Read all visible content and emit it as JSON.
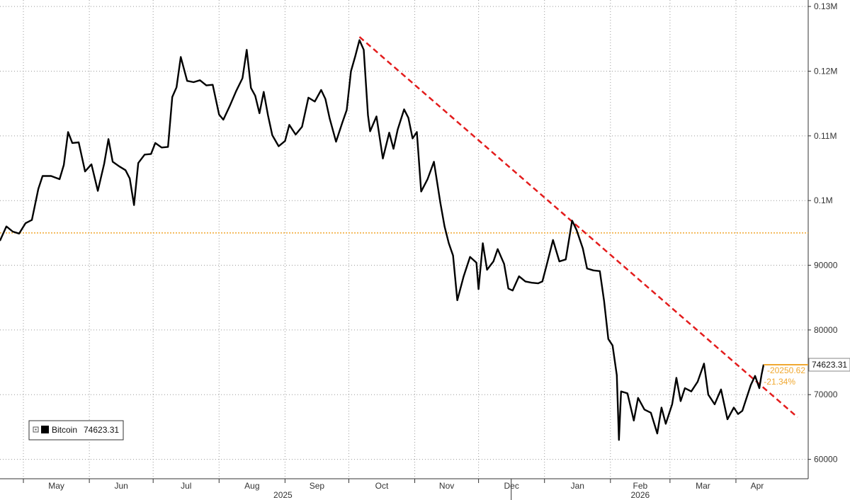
{
  "chart_data": {
    "type": "line",
    "y_unit_note": "axis in USD",
    "ylim": [
      57000,
      131000
    ],
    "y_ticks": [
      {
        "value": 60000,
        "label": "60000"
      },
      {
        "value": 70000,
        "label": "70000"
      },
      {
        "value": 80000,
        "label": "80000"
      },
      {
        "value": 90000,
        "label": "90000"
      },
      {
        "value": 100000,
        "label": "0.1M"
      },
      {
        "value": 110000,
        "label": "0.11M"
      },
      {
        "value": 120000,
        "label": "0.12M"
      },
      {
        "value": 130000,
        "label": "0.13M"
      }
    ],
    "x_range": [
      "2025-04-20",
      "2026-04-15"
    ],
    "x_ticks": [
      {
        "date": "2025-05-01",
        "label": "May"
      },
      {
        "date": "2025-06-01",
        "label": "Jun"
      },
      {
        "date": "2025-07-01",
        "label": "Jul"
      },
      {
        "date": "2025-08-01",
        "label": "Aug"
      },
      {
        "date": "2025-09-01",
        "label": "Sep"
      },
      {
        "date": "2025-10-01",
        "label": "Oct"
      },
      {
        "date": "2025-11-01",
        "label": "Nov"
      },
      {
        "date": "2025-12-01",
        "label": "Dec"
      },
      {
        "date": "2026-01-01",
        "label": "Jan"
      },
      {
        "date": "2026-02-01",
        "label": "Feb"
      },
      {
        "date": "2026-03-01",
        "label": "Mar"
      },
      {
        "date": "2026-04-01",
        "label": "Apr"
      }
    ],
    "year_labels": [
      {
        "date": "2025-08-31",
        "label": "2025"
      },
      {
        "date": "2026-02-15",
        "label": "2026"
      }
    ],
    "grid": true,
    "series": [
      {
        "name": "Bitcoin",
        "color": "#000000",
        "points": [
          [
            "2025-04-20",
            93800
          ],
          [
            "2025-04-23",
            96000
          ],
          [
            "2025-04-26",
            95200
          ],
          [
            "2025-04-29",
            94900
          ],
          [
            "2025-05-02",
            96500
          ],
          [
            "2025-05-05",
            97000
          ],
          [
            "2025-05-08",
            101800
          ],
          [
            "2025-05-10",
            103800
          ],
          [
            "2025-05-14",
            103800
          ],
          [
            "2025-05-18",
            103300
          ],
          [
            "2025-05-20",
            105500
          ],
          [
            "2025-05-22",
            110600
          ],
          [
            "2025-05-24",
            108900
          ],
          [
            "2025-05-27",
            109000
          ],
          [
            "2025-05-30",
            104500
          ],
          [
            "2025-06-02",
            105600
          ],
          [
            "2025-06-05",
            101500
          ],
          [
            "2025-06-08",
            105700
          ],
          [
            "2025-06-10",
            109500
          ],
          [
            "2025-06-12",
            106000
          ],
          [
            "2025-06-15",
            105300
          ],
          [
            "2025-06-18",
            104700
          ],
          [
            "2025-06-20",
            103400
          ],
          [
            "2025-06-22",
            99300
          ],
          [
            "2025-06-24",
            105800
          ],
          [
            "2025-06-27",
            107100
          ],
          [
            "2025-06-30",
            107200
          ],
          [
            "2025-07-02",
            108900
          ],
          [
            "2025-07-05",
            108200
          ],
          [
            "2025-07-08",
            108300
          ],
          [
            "2025-07-10",
            116000
          ],
          [
            "2025-07-12",
            117500
          ],
          [
            "2025-07-14",
            122200
          ],
          [
            "2025-07-17",
            118500
          ],
          [
            "2025-07-20",
            118300
          ],
          [
            "2025-07-23",
            118600
          ],
          [
            "2025-07-26",
            117800
          ],
          [
            "2025-07-29",
            117900
          ],
          [
            "2025-08-01",
            113300
          ],
          [
            "2025-08-03",
            112500
          ],
          [
            "2025-08-06",
            114600
          ],
          [
            "2025-08-09",
            116900
          ],
          [
            "2025-08-12",
            118900
          ],
          [
            "2025-08-14",
            123300
          ],
          [
            "2025-08-16",
            117400
          ],
          [
            "2025-08-18",
            116200
          ],
          [
            "2025-08-20",
            113500
          ],
          [
            "2025-08-22",
            116800
          ],
          [
            "2025-08-24",
            113200
          ],
          [
            "2025-08-26",
            110100
          ],
          [
            "2025-08-29",
            108400
          ],
          [
            "2025-09-01",
            109200
          ],
          [
            "2025-09-03",
            111700
          ],
          [
            "2025-09-06",
            110200
          ],
          [
            "2025-09-09",
            111400
          ],
          [
            "2025-09-12",
            115900
          ],
          [
            "2025-09-15",
            115300
          ],
          [
            "2025-09-18",
            117100
          ],
          [
            "2025-09-20",
            115700
          ],
          [
            "2025-09-22",
            112700
          ],
          [
            "2025-09-25",
            109100
          ],
          [
            "2025-09-28",
            112100
          ],
          [
            "2025-09-30",
            114000
          ],
          [
            "2025-10-02",
            120000
          ],
          [
            "2025-10-04",
            122300
          ],
          [
            "2025-10-06",
            124800
          ],
          [
            "2025-10-08",
            123300
          ],
          [
            "2025-10-10",
            113200
          ],
          [
            "2025-10-11",
            110700
          ],
          [
            "2025-10-14",
            113000
          ],
          [
            "2025-10-17",
            106500
          ],
          [
            "2025-10-20",
            110500
          ],
          [
            "2025-10-22",
            108000
          ],
          [
            "2025-10-24",
            111000
          ],
          [
            "2025-10-27",
            114100
          ],
          [
            "2025-10-29",
            112800
          ],
          [
            "2025-10-31",
            109600
          ],
          [
            "2025-11-02",
            110600
          ],
          [
            "2025-11-04",
            101400
          ],
          [
            "2025-11-07",
            103300
          ],
          [
            "2025-11-10",
            106000
          ],
          [
            "2025-11-13",
            99700
          ],
          [
            "2025-11-15",
            96000
          ],
          [
            "2025-11-17",
            93400
          ],
          [
            "2025-11-19",
            91500
          ],
          [
            "2025-11-21",
            84600
          ],
          [
            "2025-11-24",
            88300
          ],
          [
            "2025-11-27",
            91300
          ],
          [
            "2025-11-30",
            90400
          ],
          [
            "2025-12-01",
            86300
          ],
          [
            "2025-12-03",
            93400
          ],
          [
            "2025-12-05",
            89300
          ],
          [
            "2025-12-08",
            90600
          ],
          [
            "2025-12-10",
            92500
          ],
          [
            "2025-12-13",
            90200
          ],
          [
            "2025-12-15",
            86400
          ],
          [
            "2025-12-17",
            86100
          ],
          [
            "2025-12-20",
            88300
          ],
          [
            "2025-12-23",
            87500
          ],
          [
            "2025-12-26",
            87300
          ],
          [
            "2025-12-29",
            87200
          ],
          [
            "2025-12-31",
            87500
          ],
          [
            "2026-01-02",
            90000
          ],
          [
            "2026-01-05",
            93900
          ],
          [
            "2026-01-08",
            90600
          ],
          [
            "2026-01-11",
            90900
          ],
          [
            "2026-01-14",
            96900
          ],
          [
            "2026-01-16",
            95500
          ],
          [
            "2026-01-19",
            92600
          ],
          [
            "2026-01-21",
            89500
          ],
          [
            "2026-01-24",
            89200
          ],
          [
            "2026-01-27",
            89100
          ],
          [
            "2026-01-29",
            84500
          ],
          [
            "2026-01-31",
            78600
          ],
          [
            "2026-02-02",
            77600
          ],
          [
            "2026-02-04",
            73000
          ],
          [
            "2026-02-05",
            63000
          ],
          [
            "2026-02-06",
            70500
          ],
          [
            "2026-02-09",
            70200
          ],
          [
            "2026-02-12",
            66000
          ],
          [
            "2026-02-14",
            69500
          ],
          [
            "2026-02-17",
            67700
          ],
          [
            "2026-02-20",
            67200
          ],
          [
            "2026-02-23",
            64000
          ],
          [
            "2026-02-25",
            68000
          ],
          [
            "2026-02-27",
            65500
          ],
          [
            "2026-03-02",
            68500
          ],
          [
            "2026-03-04",
            72600
          ],
          [
            "2026-03-06",
            69000
          ],
          [
            "2026-03-08",
            71000
          ],
          [
            "2026-03-11",
            70500
          ],
          [
            "2026-03-14",
            72000
          ],
          [
            "2026-03-17",
            74800
          ],
          [
            "2026-03-19",
            70000
          ],
          [
            "2026-03-22",
            68500
          ],
          [
            "2026-03-25",
            70800
          ],
          [
            "2026-03-28",
            66200
          ],
          [
            "2026-03-31",
            68000
          ],
          [
            "2026-04-02",
            67000
          ],
          [
            "2026-04-04",
            67500
          ],
          [
            "2026-04-06",
            69500
          ],
          [
            "2026-04-08",
            71500
          ],
          [
            "2026-04-10",
            72900
          ],
          [
            "2026-04-12",
            71000
          ],
          [
            "2026-04-13",
            73000
          ],
          [
            "2026-04-14",
            74623.31
          ]
        ]
      }
    ],
    "trendline": {
      "color": "#e31c1c",
      "points": [
        [
          "2025-10-06",
          125300
        ],
        [
          "2026-04-30",
          66500
        ]
      ]
    },
    "reference_line": {
      "color": "#f0a830",
      "value": 95000
    },
    "last_value_marker": {
      "value": 74623.31,
      "label": "74623.31",
      "color": "#f0a830"
    },
    "annotations": {
      "change_abs": "-20250.62",
      "change_pct": "-21.34%"
    },
    "legend": {
      "position": "bottom-left",
      "label": "Bitcoin",
      "value": "74623.31"
    }
  }
}
